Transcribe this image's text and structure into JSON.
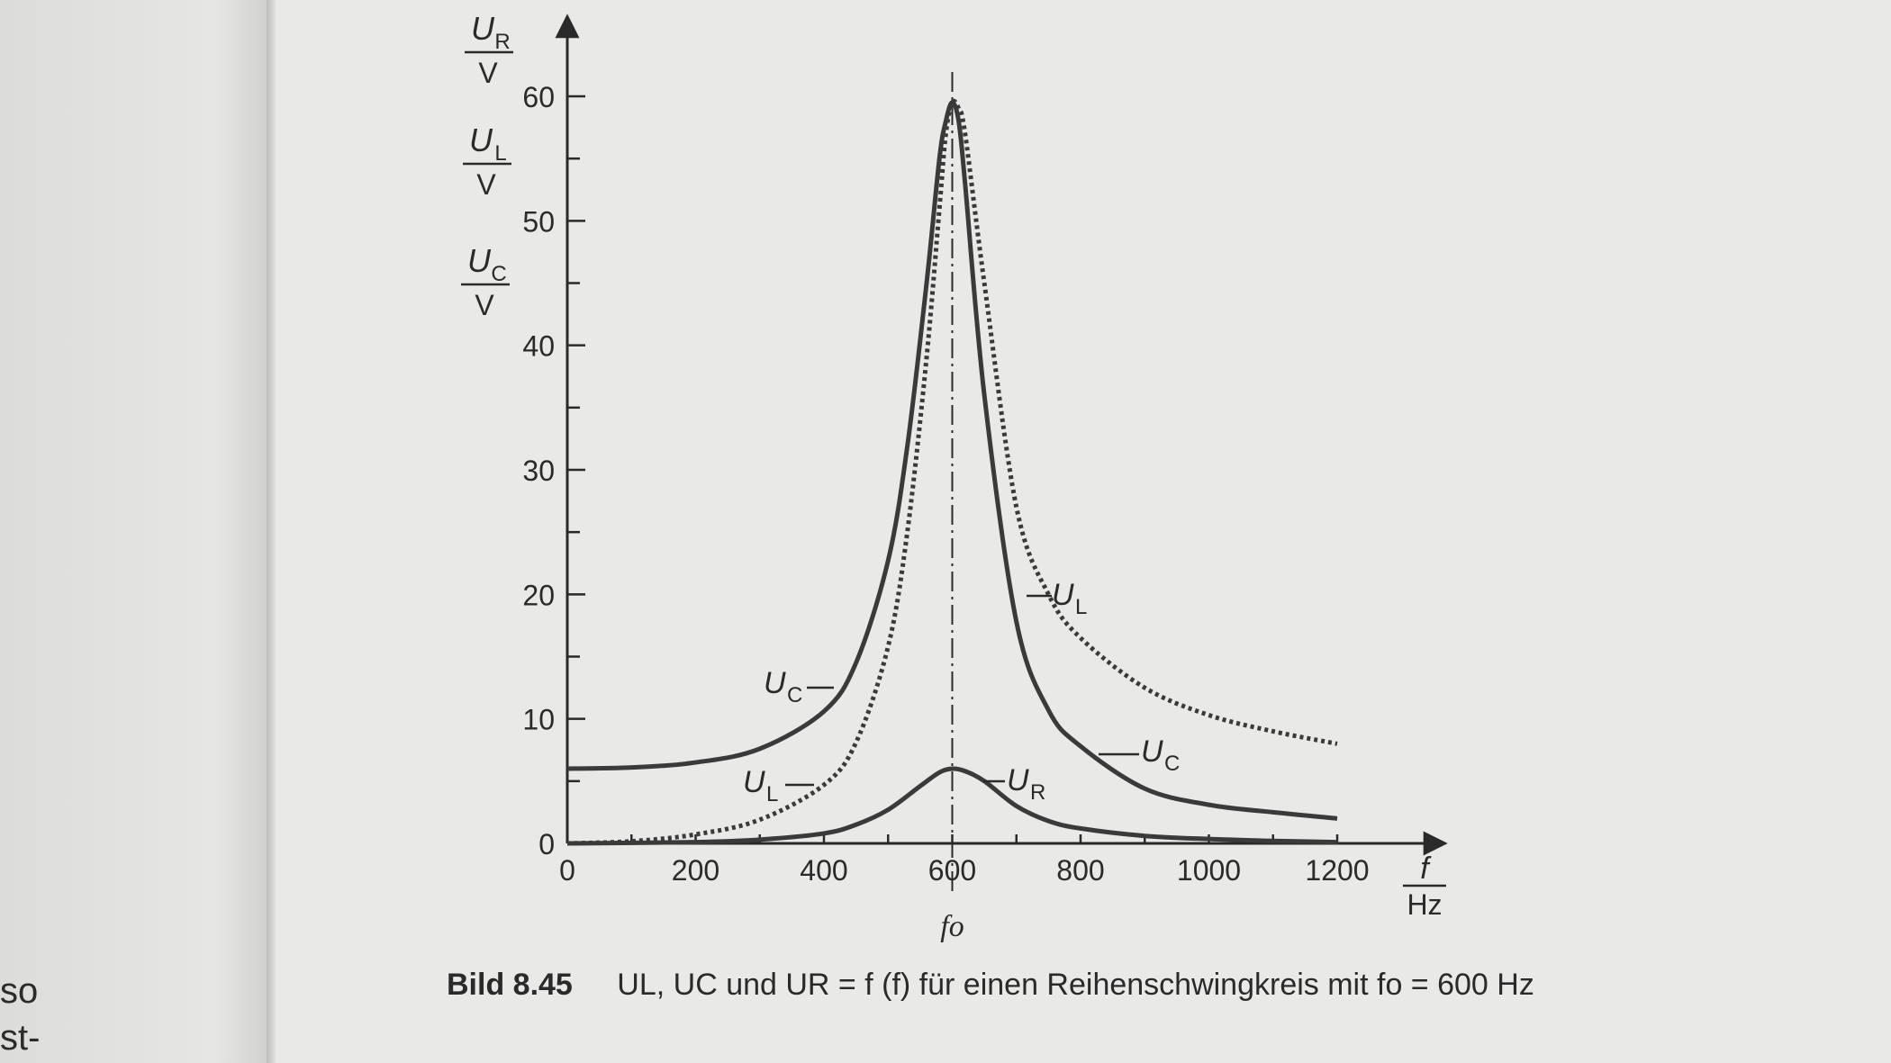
{
  "left_page": {
    "lines": [
      "so",
      "st-"
    ]
  },
  "caption": {
    "label": "Bild 8.45",
    "text": "UL, UC und UR = f (f) für einen Reihenschwingkreis mit fo = 600 Hz"
  },
  "chart_data": {
    "type": "line",
    "ylabel": "UR/V, UL/V, UC/V",
    "xlabel": "f/Hz",
    "xlim": [
      0,
      1300
    ],
    "ylim": [
      0,
      65
    ],
    "x_ticks": [
      0,
      200,
      400,
      600,
      800,
      1000,
      1200
    ],
    "y_ticks": [
      0,
      10,
      20,
      30,
      40,
      50,
      60
    ],
    "resonance_marker": {
      "x": 600,
      "label": "fo"
    },
    "colors": {
      "curve": "#3a3a3a",
      "axis": "#2a2a2a"
    },
    "series": [
      {
        "name": "UC",
        "line_style": "solid",
        "x": [
          0,
          100,
          200,
          300,
          400,
          450,
          500,
          530,
          560,
          580,
          590,
          600,
          610,
          620,
          650,
          700,
          750,
          800,
          900,
          1000,
          1100,
          1200
        ],
        "values": [
          6,
          6.1,
          6.5,
          7.6,
          10.6,
          14.5,
          22.7,
          31.9,
          45,
          55,
          58,
          59.5,
          58,
          53,
          36,
          17.8,
          10.7,
          7.8,
          4.4,
          3.1,
          2.5,
          2.0
        ]
      },
      {
        "name": "UL",
        "line_style": "dotted",
        "x": [
          0,
          100,
          200,
          300,
          400,
          450,
          500,
          530,
          560,
          580,
          590,
          600,
          610,
          620,
          650,
          700,
          750,
          800,
          900,
          1000,
          1100,
          1200
        ],
        "values": [
          0,
          0.17,
          0.72,
          1.9,
          4.7,
          8.1,
          15.8,
          25,
          39,
          51,
          57,
          59.5,
          59,
          57,
          45,
          27,
          20,
          16.5,
          12.5,
          10.3,
          9.0,
          8.0
        ]
      },
      {
        "name": "UR",
        "line_style": "solid",
        "x": [
          0,
          200,
          300,
          400,
          450,
          500,
          550,
          580,
          600,
          620,
          650,
          700,
          750,
          800,
          900,
          1000,
          1100,
          1200
        ],
        "values": [
          0,
          0.1,
          0.3,
          0.8,
          1.5,
          2.7,
          4.6,
          5.7,
          6.0,
          5.8,
          5.0,
          3.0,
          1.8,
          1.2,
          0.6,
          0.35,
          0.2,
          0.1
        ]
      }
    ],
    "curve_labels": [
      {
        "text": "UC",
        "near": "left ascending branch at ~10 V"
      },
      {
        "text": "UL",
        "near": "left dotted branch at ~5 V"
      },
      {
        "text": "UL",
        "near": "right dotted branch at ~20 V"
      },
      {
        "text": "UC",
        "near": "right descending branch at ~7 V"
      },
      {
        "text": "UR",
        "near": "UR peak"
      }
    ]
  }
}
